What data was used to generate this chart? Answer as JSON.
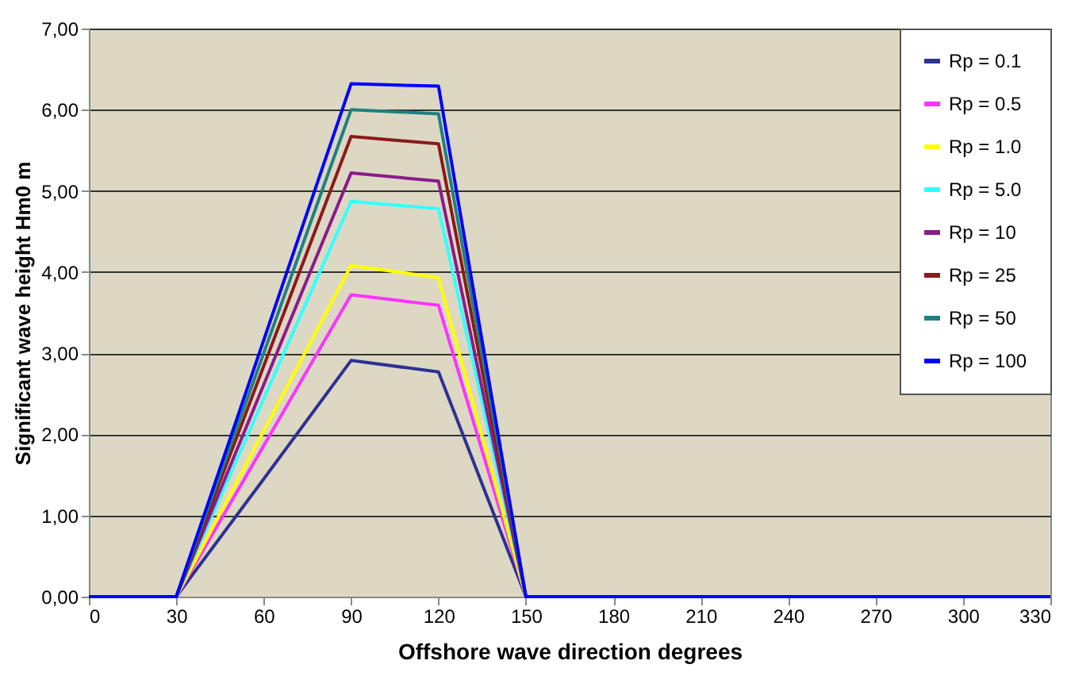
{
  "chart_data": {
    "type": "line",
    "xlabel": "Offshore wave direction  degrees",
    "ylabel": "Significant  wave height Hm0 m",
    "x": [
      0,
      30,
      60,
      90,
      120,
      150,
      180,
      210,
      240,
      270,
      300,
      330
    ],
    "series": [
      {
        "name": "Rp = 0.1",
        "color": "#2e3192",
        "values": [
          null,
          0,
          1.45,
          2.91,
          2.77,
          0,
          null,
          null,
          null,
          null,
          null,
          null
        ]
      },
      {
        "name": "Rp = 0.5",
        "color": "#ff33ff",
        "values": [
          null,
          0,
          1.86,
          3.72,
          3.59,
          0,
          null,
          null,
          null,
          null,
          null,
          null
        ]
      },
      {
        "name": "Rp = 1.0",
        "color": "#ffff00",
        "values": [
          null,
          0,
          2.04,
          4.08,
          3.93,
          0,
          null,
          null,
          null,
          null,
          null,
          null
        ]
      },
      {
        "name": "Rp = 5.0",
        "color": "#33ffff",
        "values": [
          null,
          0,
          2.44,
          4.87,
          4.78,
          0,
          null,
          null,
          null,
          null,
          null,
          null
        ]
      },
      {
        "name": "Rp = 10",
        "color": "#8b1a8b",
        "values": [
          null,
          0,
          2.61,
          5.22,
          5.12,
          0,
          null,
          null,
          null,
          null,
          null,
          null
        ]
      },
      {
        "name": "Rp = 25",
        "color": "#8b1a1a",
        "values": [
          null,
          0,
          2.84,
          5.67,
          5.58,
          0,
          null,
          null,
          null,
          null,
          null,
          null
        ]
      },
      {
        "name": "Rp = 50",
        "color": "#1f8080",
        "values": [
          null,
          0,
          3.0,
          6.0,
          5.95,
          0,
          null,
          null,
          null,
          null,
          null,
          null
        ]
      },
      {
        "name": "Rp = 100",
        "color": "#0000ff",
        "values": [
          0,
          0,
          3.16,
          6.32,
          6.29,
          0,
          0,
          0,
          0,
          0,
          0,
          0
        ]
      }
    ],
    "xlim": [
      0,
      330
    ],
    "xticks": [
      0,
      30,
      60,
      90,
      120,
      150,
      180,
      210,
      240,
      270,
      300,
      330
    ],
    "ylim": [
      0,
      7
    ],
    "yticks": [
      {
        "value": 0,
        "label": "0,00"
      },
      {
        "value": 1,
        "label": "1,00"
      },
      {
        "value": 2,
        "label": "2,00"
      },
      {
        "value": 3,
        "label": "3,00"
      },
      {
        "value": 4,
        "label": "4,00"
      },
      {
        "value": 5,
        "label": "5,00"
      },
      {
        "value": 6,
        "label": "6,00"
      },
      {
        "value": 7,
        "label": "7,00"
      }
    ],
    "grid": "y",
    "legend": "top right",
    "marker": "none",
    "line_style": "solid"
  }
}
